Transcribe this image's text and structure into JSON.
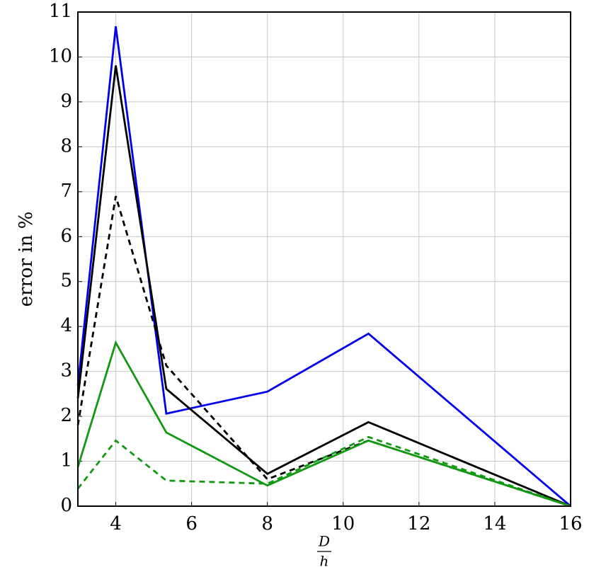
{
  "chart_data": {
    "type": "line",
    "ylabel": "error in %",
    "xlabel": {
      "numerator": "D",
      "denominator": "h"
    },
    "x": [
      3,
      4,
      5.333,
      8,
      10.667,
      16
    ],
    "series": [
      {
        "color": "#0000ee",
        "dashed": false,
        "values": [
          2.68,
          10.68,
          2.06,
          2.55,
          3.84,
          0
        ]
      },
      {
        "color": "#000000",
        "dashed": false,
        "values": [
          2.4,
          9.81,
          2.61,
          0.72,
          1.87,
          0
        ]
      },
      {
        "color": "#000000",
        "dashed": true,
        "values": [
          1.8,
          6.9,
          3.13,
          0.6,
          1.46,
          0
        ]
      },
      {
        "color": "#119911",
        "dashed": false,
        "values": [
          0.87,
          3.64,
          1.64,
          0.46,
          1.46,
          0
        ]
      },
      {
        "color": "#119911",
        "dashed": true,
        "values": [
          0.39,
          1.46,
          0.57,
          0.5,
          1.54,
          0
        ]
      }
    ],
    "xlim": [
      3,
      16
    ],
    "xticks": [
      4,
      6,
      8,
      10,
      12,
      14,
      16
    ],
    "ylim": [
      0,
      11
    ],
    "yticks": [
      0,
      1,
      2,
      3,
      4,
      5,
      6,
      7,
      8,
      9,
      10,
      11
    ],
    "grid": true
  }
}
